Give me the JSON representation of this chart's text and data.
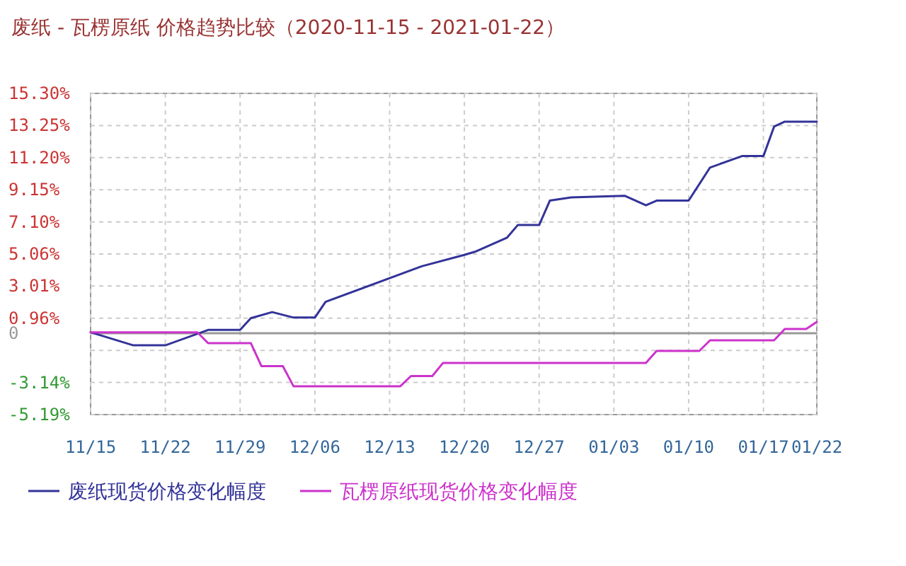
{
  "chart_data": {
    "type": "line",
    "title": "废纸 - 瓦楞原纸 价格趋势比较（2020-11-15 - 2021-01-22）",
    "xlim": [
      "2020-11-15",
      "2021-01-22"
    ],
    "xticks": [
      {
        "value": "2020-11-15",
        "label": "11/15"
      },
      {
        "value": "2020-11-22",
        "label": "11/22"
      },
      {
        "value": "2020-11-29",
        "label": "11/29"
      },
      {
        "value": "2020-12-06",
        "label": "12/06"
      },
      {
        "value": "2020-12-13",
        "label": "12/13"
      },
      {
        "value": "2020-12-20",
        "label": "12/20"
      },
      {
        "value": "2020-12-27",
        "label": "12/27"
      },
      {
        "value": "2021-01-03",
        "label": "01/03"
      },
      {
        "value": "2021-01-10",
        "label": "01/10"
      },
      {
        "value": "2021-01-17",
        "label": "01/17"
      },
      {
        "value": "2021-01-22",
        "label": "01/22"
      }
    ],
    "ylim": [
      -5.19,
      15.3
    ],
    "yticks": [
      {
        "value": -5.19,
        "label": "-5.19%"
      },
      {
        "value": -3.14,
        "label": "-3.14%"
      },
      {
        "value": -1.09,
        "label": null
      },
      {
        "value": 0,
        "label": "0"
      },
      {
        "value": 0.96,
        "label": "0.96%"
      },
      {
        "value": 3.01,
        "label": "3.01%"
      },
      {
        "value": 5.06,
        "label": "5.06%"
      },
      {
        "value": 7.1,
        "label": "7.10%"
      },
      {
        "value": 9.15,
        "label": "9.15%"
      },
      {
        "value": 11.2,
        "label": "11.20%"
      },
      {
        "value": 13.25,
        "label": "13.25%"
      },
      {
        "value": 15.3,
        "label": "15.30%"
      }
    ],
    "grid": true,
    "legend": "bottom",
    "marker": "none",
    "line_style": "solid",
    "ref_lines": [
      {
        "axis": "y",
        "value": 0,
        "color": "#999999"
      }
    ],
    "series": [
      {
        "name": "废纸现货价格变化幅度",
        "color": "#333399",
        "x": [
          "2020-11-15",
          "2020-11-19",
          "2020-11-22",
          "2020-11-26",
          "2020-11-29",
          "2020-11-30",
          "2020-12-02",
          "2020-12-04",
          "2020-12-06",
          "2020-12-07",
          "2020-12-16",
          "2020-12-20",
          "2020-12-21",
          "2020-12-24",
          "2020-12-25",
          "2020-12-27",
          "2020-12-28",
          "2020-12-30",
          "2021-01-04",
          "2021-01-06",
          "2021-01-07",
          "2021-01-10",
          "2021-01-12",
          "2021-01-15",
          "2021-01-17",
          "2021-01-18",
          "2021-01-19",
          "2021-01-22"
        ],
        "values": [
          0.06,
          -0.77,
          -0.77,
          0.21,
          0.21,
          0.96,
          1.35,
          1.0,
          1.0,
          2.0,
          4.27,
          5.0,
          5.2,
          6.1,
          6.9,
          6.9,
          8.46,
          8.67,
          8.77,
          8.16,
          8.46,
          8.46,
          10.57,
          11.3,
          11.3,
          13.18,
          13.5,
          13.5
        ]
      },
      {
        "name": "瓦楞原纸现货价格变化幅度",
        "color": "#cc33cc",
        "x": [
          "2020-11-15",
          "2020-11-25",
          "2020-11-26",
          "2020-11-30",
          "2020-12-01",
          "2020-12-03",
          "2020-12-04",
          "2020-12-14",
          "2020-12-15",
          "2020-12-17",
          "2020-12-18",
          "2021-01-06",
          "2021-01-07",
          "2021-01-11",
          "2021-01-12",
          "2021-01-18",
          "2021-01-19",
          "2021-01-21",
          "2021-01-22"
        ],
        "values": [
          0.06,
          0.06,
          -0.63,
          -0.63,
          -2.1,
          -2.1,
          -3.38,
          -3.38,
          -2.73,
          -2.73,
          -1.89,
          -1.89,
          -1.13,
          -1.13,
          -0.45,
          -0.45,
          0.27,
          0.27,
          0.72
        ]
      }
    ]
  }
}
